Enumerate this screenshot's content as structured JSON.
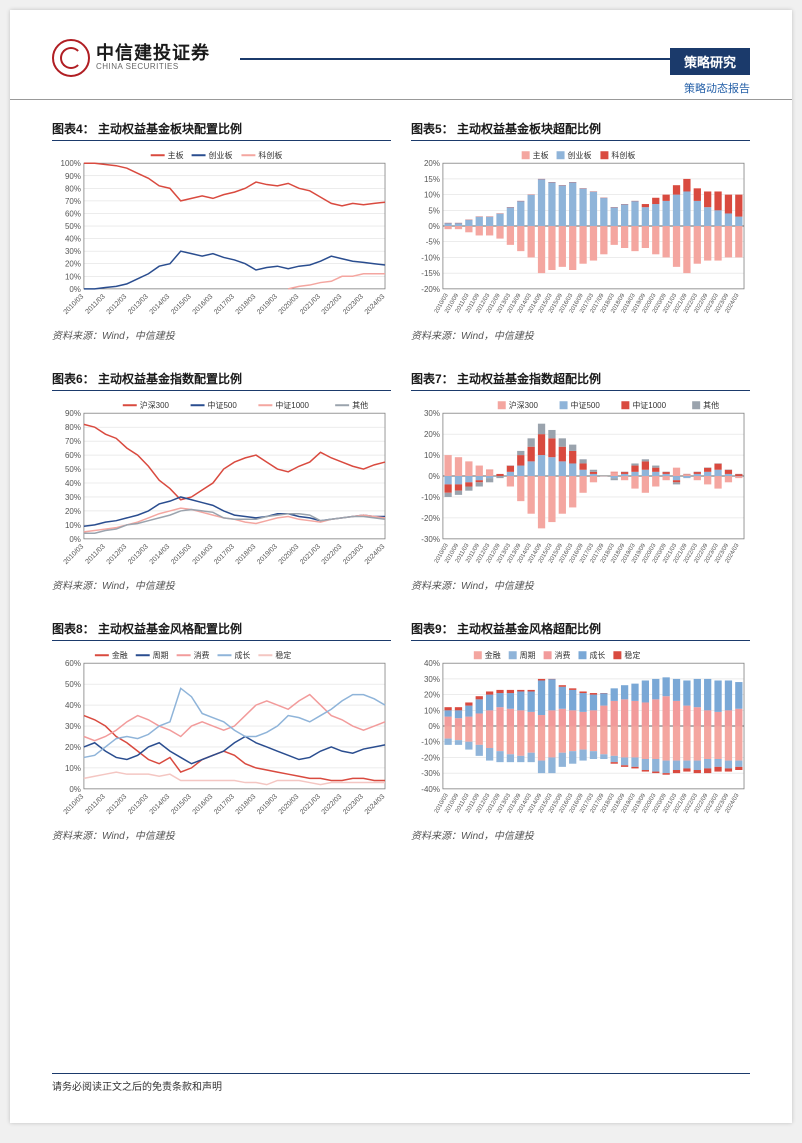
{
  "header": {
    "logo_cn": "中信建投证券",
    "logo_en": "CHINA SECURITIES",
    "badge": "策略研究",
    "subtitle": "策略动态报告"
  },
  "footer": "请务必阅读正文之后的免责条款和声明",
  "source_label": "资料来源：Wind，中信建投",
  "colors": {
    "brand_navy": "#1b3a6b",
    "brand_red": "#b01e23",
    "series_red": "#d94a3f",
    "series_navy": "#2a4d8f",
    "series_pink": "#f4a6a0",
    "series_grey": "#9aa3ad",
    "series_lightblue": "#8fb4d9",
    "grid": "#d9d9d9",
    "axis": "#808080",
    "bg": "#ffffff"
  },
  "x_labels_q": [
    "2010/03",
    "2011/03",
    "2012/03",
    "2013/03",
    "2014/03",
    "2015/03",
    "2016/03",
    "2017/03",
    "2018/03",
    "2019/03",
    "2020/03",
    "2021/03",
    "2022/03",
    "2023/03",
    "2024/03"
  ],
  "x_labels_hy": [
    "2010/03",
    "2010/09",
    "2011/03",
    "2011/09",
    "2012/03",
    "2012/09",
    "2013/03",
    "2013/09",
    "2014/03",
    "2014/09",
    "2015/03",
    "2015/09",
    "2016/03",
    "2016/09",
    "2017/03",
    "2017/09",
    "2018/03",
    "2018/09",
    "2019/03",
    "2019/09",
    "2020/03",
    "2020/09",
    "2021/03",
    "2021/09",
    "2022/03",
    "2022/09",
    "2023/03",
    "2023/09",
    "2024/03"
  ],
  "chart4": {
    "title": "图表4：  主动权益基金板块配置比例",
    "type": "line",
    "ylim": [
      0,
      100
    ],
    "ytick_step": 10,
    "y_suffix": "%",
    "legend": [
      "主板",
      "创业板",
      "科创板"
    ],
    "legend_colors": [
      "#d94a3f",
      "#2a4d8f",
      "#f4a6a0"
    ],
    "series": {
      "主板": [
        100,
        100,
        99,
        98,
        96,
        92,
        88,
        82,
        80,
        70,
        72,
        74,
        72,
        75,
        77,
        80,
        85,
        83,
        82,
        84,
        80,
        78,
        73,
        68,
        66,
        68,
        67,
        68,
        69
      ],
      "创业板": [
        0,
        0,
        1,
        2,
        4,
        8,
        12,
        18,
        20,
        30,
        28,
        26,
        28,
        25,
        23,
        20,
        15,
        17,
        18,
        16,
        18,
        19,
        22,
        26,
        24,
        22,
        21,
        20,
        19
      ],
      "科创板": [
        null,
        null,
        null,
        null,
        null,
        null,
        null,
        null,
        null,
        null,
        null,
        null,
        null,
        null,
        null,
        null,
        null,
        null,
        null,
        0,
        2,
        3,
        5,
        6,
        10,
        10,
        12,
        12,
        12
      ]
    }
  },
  "chart5": {
    "title": "图表5：  主动权益基金板块超配比例",
    "type": "stacked_bar_diverging",
    "ylim": [
      -20,
      20
    ],
    "ytick_step": 5,
    "y_suffix": "%",
    "legend": [
      "主板",
      "创业板",
      "科创板"
    ],
    "legend_colors": [
      "#f4a6a0",
      "#8fb4d9",
      "#d94a3f"
    ],
    "series": {
      "主板": [
        -1,
        -1,
        -2,
        -3,
        -3,
        -4,
        -6,
        -8,
        -10,
        -15,
        -14,
        -13,
        -14,
        -12,
        -11,
        -9,
        -6,
        -7,
        -8,
        -7,
        -9,
        -10,
        -13,
        -15,
        -12,
        -11,
        -11,
        -10,
        -10
      ],
      "创业板": [
        1,
        1,
        2,
        3,
        3,
        4,
        6,
        8,
        10,
        15,
        14,
        13,
        14,
        12,
        11,
        9,
        6,
        7,
        8,
        6,
        7,
        8,
        10,
        11,
        8,
        6,
        5,
        4,
        3
      ],
      "科创板": [
        0,
        0,
        0,
        0,
        0,
        0,
        0,
        0,
        0,
        0,
        0,
        0,
        0,
        0,
        0,
        0,
        0,
        0,
        0,
        1,
        2,
        2,
        3,
        4,
        4,
        5,
        6,
        6,
        7
      ]
    }
  },
  "chart6": {
    "title": "图表6：  主动权益基金指数配置比例",
    "type": "line",
    "ylim": [
      0,
      90
    ],
    "ytick_step": 10,
    "y_suffix": "%",
    "legend": [
      "沪深300",
      "中证500",
      "中证1000",
      "其他"
    ],
    "legend_colors": [
      "#d94a3f",
      "#2a4d8f",
      "#f4a6a0",
      "#9aa3ad"
    ],
    "series": {
      "沪深300": [
        82,
        80,
        75,
        72,
        65,
        60,
        52,
        42,
        36,
        28,
        30,
        35,
        40,
        50,
        55,
        58,
        60,
        55,
        50,
        48,
        52,
        55,
        62,
        58,
        55,
        52,
        50,
        53,
        55
      ],
      "中证500": [
        9,
        10,
        12,
        13,
        15,
        17,
        20,
        25,
        27,
        30,
        28,
        26,
        24,
        20,
        17,
        16,
        15,
        16,
        18,
        18,
        16,
        15,
        13,
        14,
        15,
        16,
        17,
        16,
        16
      ],
      "中证1000": [
        5,
        6,
        7,
        8,
        10,
        12,
        15,
        18,
        20,
        22,
        21,
        19,
        17,
        15,
        14,
        12,
        11,
        13,
        15,
        16,
        14,
        13,
        12,
        14,
        15,
        16,
        17,
        16,
        15
      ],
      "其他": [
        4,
        4,
        6,
        7,
        10,
        11,
        13,
        15,
        17,
        20,
        21,
        20,
        19,
        15,
        14,
        14,
        14,
        16,
        17,
        18,
        18,
        17,
        13,
        14,
        15,
        16,
        16,
        15,
        14
      ]
    }
  },
  "chart7": {
    "title": "图表7：  主动权益基金指数超配比例",
    "type": "stacked_bar_diverging",
    "ylim": [
      -30,
      30
    ],
    "ytick_step": 10,
    "y_suffix": "%",
    "legend": [
      "沪深300",
      "中证500",
      "中证1000",
      "其他"
    ],
    "legend_colors": [
      "#f4a6a0",
      "#8fb4d9",
      "#d94a3f",
      "#9aa3ad"
    ],
    "series": {
      "沪深300": [
        10,
        9,
        7,
        5,
        3,
        0,
        -5,
        -12,
        -18,
        -25,
        -22,
        -18,
        -15,
        -8,
        -3,
        0,
        2,
        -2,
        -6,
        -8,
        -5,
        -2,
        4,
        1,
        -2,
        -4,
        -6,
        -3,
        -1
      ],
      "中证500": [
        -4,
        -4,
        -3,
        -2,
        -1,
        0,
        2,
        5,
        7,
        10,
        9,
        7,
        6,
        3,
        1,
        0,
        -1,
        1,
        2,
        3,
        2,
        1,
        -2,
        -1,
        1,
        2,
        3,
        1,
        0
      ],
      "中证1000": [
        -4,
        -3,
        -2,
        -1,
        0,
        1,
        3,
        5,
        7,
        10,
        9,
        7,
        6,
        3,
        1,
        0,
        0,
        1,
        3,
        4,
        2,
        1,
        -1,
        0,
        1,
        2,
        3,
        2,
        1
      ],
      "其他": [
        -2,
        -2,
        -2,
        -2,
        -2,
        -1,
        0,
        2,
        4,
        5,
        4,
        4,
        3,
        2,
        1,
        0,
        -1,
        0,
        1,
        1,
        1,
        0,
        -1,
        0,
        0,
        0,
        0,
        0,
        0
      ]
    }
  },
  "chart8": {
    "title": "图表8：  主动权益基金风格配置比例",
    "type": "line",
    "ylim": [
      0,
      60
    ],
    "ytick_step": 10,
    "y_suffix": "%",
    "legend": [
      "金融",
      "周期",
      "消费",
      "成长",
      "稳定"
    ],
    "legend_colors": [
      "#d94a3f",
      "#2a4d8f",
      "#f29b9b",
      "#8fb4d9",
      "#f4c6c2"
    ],
    "series": {
      "金融": [
        35,
        33,
        30,
        25,
        22,
        18,
        14,
        12,
        15,
        8,
        10,
        14,
        16,
        18,
        16,
        12,
        10,
        9,
        8,
        7,
        6,
        5,
        5,
        4,
        4,
        5,
        5,
        4,
        4
      ],
      "周期": [
        20,
        22,
        18,
        15,
        14,
        16,
        20,
        22,
        18,
        15,
        12,
        14,
        16,
        18,
        22,
        25,
        22,
        20,
        18,
        16,
        14,
        15,
        18,
        20,
        18,
        17,
        19,
        20,
        21
      ],
      "消费": [
        25,
        23,
        25,
        28,
        32,
        35,
        33,
        30,
        28,
        25,
        30,
        32,
        30,
        28,
        30,
        35,
        40,
        42,
        40,
        38,
        42,
        45,
        40,
        35,
        33,
        30,
        28,
        30,
        32
      ],
      "成长": [
        15,
        16,
        20,
        24,
        25,
        24,
        26,
        30,
        32,
        48,
        44,
        36,
        34,
        32,
        28,
        25,
        25,
        27,
        30,
        35,
        34,
        32,
        35,
        38,
        42,
        45,
        45,
        43,
        40
      ],
      "稳定": [
        5,
        6,
        7,
        8,
        7,
        7,
        7,
        6,
        7,
        4,
        4,
        4,
        4,
        4,
        4,
        3,
        3,
        2,
        4,
        4,
        4,
        3,
        2,
        3,
        3,
        3,
        3,
        3,
        3
      ]
    }
  },
  "chart9": {
    "title": "图表9：  主动权益基金风格超配比例",
    "type": "stacked_bar_diverging",
    "ylim": [
      -40,
      40
    ],
    "ytick_step": 10,
    "y_suffix": "%",
    "legend": [
      "金融",
      "周期",
      "消费",
      "成长",
      "稳定"
    ],
    "legend_colors": [
      "#f4a6a0",
      "#8fb4d9",
      "#f29b9b",
      "#7aa8d6",
      "#d94a3f"
    ],
    "series": {
      "金融": [
        -8,
        -9,
        -10,
        -12,
        -14,
        -16,
        -18,
        -19,
        -17,
        -22,
        -20,
        -17,
        -16,
        -15,
        -16,
        -18,
        -19,
        -20,
        -20,
        -21,
        -21,
        -22,
        -22,
        -22,
        -22,
        -21,
        -21,
        -22,
        -22
      ],
      "周期": [
        -4,
        -3,
        -5,
        -7,
        -8,
        -7,
        -5,
        -4,
        -6,
        -8,
        -10,
        -9,
        -8,
        -7,
        -5,
        -3,
        -4,
        -5,
        -6,
        -7,
        -8,
        -8,
        -6,
        -5,
        -6,
        -6,
        -5,
        -5,
        -4
      ],
      "消费": [
        6,
        5,
        6,
        8,
        10,
        12,
        11,
        10,
        9,
        7,
        10,
        11,
        10,
        9,
        10,
        13,
        16,
        17,
        16,
        15,
        17,
        19,
        16,
        13,
        12,
        10,
        9,
        10,
        11
      ],
      "成长": [
        4,
        5,
        7,
        9,
        10,
        9,
        10,
        12,
        13,
        22,
        20,
        14,
        13,
        12,
        10,
        8,
        8,
        9,
        11,
        14,
        13,
        12,
        14,
        16,
        18,
        20,
        20,
        19,
        17
      ],
      "稳定": [
        2,
        2,
        2,
        2,
        2,
        2,
        2,
        1,
        1,
        1,
        0,
        1,
        1,
        1,
        1,
        0,
        -1,
        -1,
        -1,
        -1,
        -1,
        -1,
        -2,
        -2,
        -2,
        -3,
        -3,
        -2,
        -2
      ]
    }
  }
}
